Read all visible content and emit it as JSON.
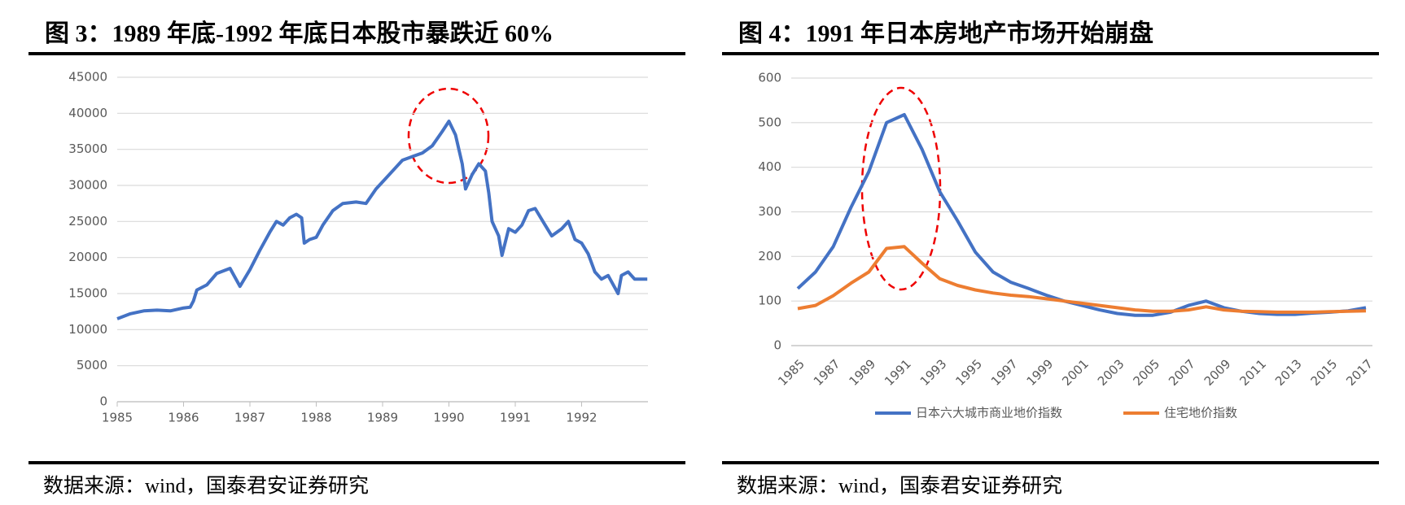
{
  "chart_data": [
    {
      "type": "line",
      "title": "图 3：1989 年底-1992 年底日本股市暴跌近 60%",
      "source": "数据来源：wind，国泰君安证券研究",
      "x": [
        1985.0,
        1985.2,
        1985.4,
        1985.6,
        1985.8,
        1986.0,
        1986.1,
        1986.15,
        1986.2,
        1986.35,
        1986.5,
        1986.7,
        1986.85,
        1987.0,
        1987.15,
        1987.3,
        1987.4,
        1987.5,
        1987.6,
        1987.7,
        1987.78,
        1987.82,
        1987.9,
        1988.0,
        1988.1,
        1988.25,
        1988.4,
        1988.6,
        1988.75,
        1988.9,
        1989.0,
        1989.15,
        1989.3,
        1989.45,
        1989.6,
        1989.75,
        1989.9,
        1990.0,
        1990.1,
        1990.2,
        1990.25,
        1990.35,
        1990.45,
        1990.55,
        1990.6,
        1990.65,
        1990.75,
        1990.8,
        1990.9,
        1991.0,
        1991.1,
        1991.2,
        1991.3,
        1991.45,
        1991.55,
        1991.7,
        1991.8,
        1991.9,
        1992.0,
        1992.1,
        1992.2,
        1992.3,
        1992.4,
        1992.55,
        1992.6,
        1992.7,
        1992.8,
        1992.9,
        1992.99
      ],
      "series": [
        {
          "color": "#4472c4",
          "values": [
            11500,
            12200,
            12600,
            12700,
            12600,
            13000,
            13100,
            14000,
            15500,
            16200,
            17800,
            18500,
            16000,
            18300,
            21000,
            23500,
            25000,
            24500,
            25500,
            26000,
            25500,
            22000,
            22500,
            22800,
            24500,
            26500,
            27500,
            27700,
            27500,
            29500,
            30500,
            32000,
            33500,
            34000,
            34500,
            35500,
            37500,
            38900,
            37000,
            33000,
            29500,
            31500,
            33000,
            32000,
            29000,
            25000,
            23000,
            20300,
            24000,
            23500,
            24500,
            26500,
            26800,
            24500,
            23000,
            24000,
            25000,
            22500,
            22000,
            20500,
            18000,
            17000,
            17500,
            15000,
            17500,
            18000,
            17000,
            17000,
            17000
          ]
        }
      ],
      "xlim": [
        1985,
        1993
      ],
      "xticks": [
        1985,
        1986,
        1987,
        1988,
        1989,
        1990,
        1991,
        1992
      ],
      "ylim": [
        0,
        45000
      ],
      "yticks": [
        0,
        5000,
        10000,
        15000,
        20000,
        25000,
        30000,
        35000,
        40000,
        45000
      ],
      "grid": true
    },
    {
      "type": "line",
      "title": "图 4：1991 年日本房地产市场开始崩盘",
      "source": "数据来源：wind，国泰君安证券研究",
      "categories": [
        "1985",
        null,
        "1987",
        null,
        "1989",
        null,
        "1991",
        null,
        "1993",
        null,
        "1995",
        null,
        "1997",
        null,
        "1999",
        null,
        "2001",
        null,
        "2003",
        null,
        "2005",
        null,
        "2007",
        null,
        "2009",
        null,
        "2011",
        null,
        "2013",
        null,
        "2015",
        null,
        "2017"
      ],
      "series": [
        {
          "name": "日本六大城市商业地价指数",
          "color": "#4472c4",
          "values": [
            128,
            165,
            222,
            310,
            390,
            500,
            518,
            440,
            345,
            280,
            210,
            165,
            142,
            128,
            113,
            100,
            90,
            80,
            72,
            68,
            68,
            75,
            90,
            100,
            85,
            77,
            72,
            70,
            70,
            73,
            75,
            78,
            85
          ]
        },
        {
          "name": "住宅地价指数",
          "color": "#ed7d31",
          "values": [
            83,
            90,
            112,
            140,
            165,
            218,
            222,
            185,
            150,
            135,
            125,
            118,
            113,
            110,
            105,
            100,
            95,
            90,
            85,
            80,
            77,
            77,
            80,
            87,
            80,
            77,
            76,
            75,
            75,
            75,
            76,
            77,
            78
          ]
        }
      ],
      "ylim": [
        0,
        600
      ],
      "yticks": [
        0,
        100,
        200,
        300,
        400,
        500,
        600
      ],
      "grid": true,
      "legend": "bottom"
    }
  ]
}
